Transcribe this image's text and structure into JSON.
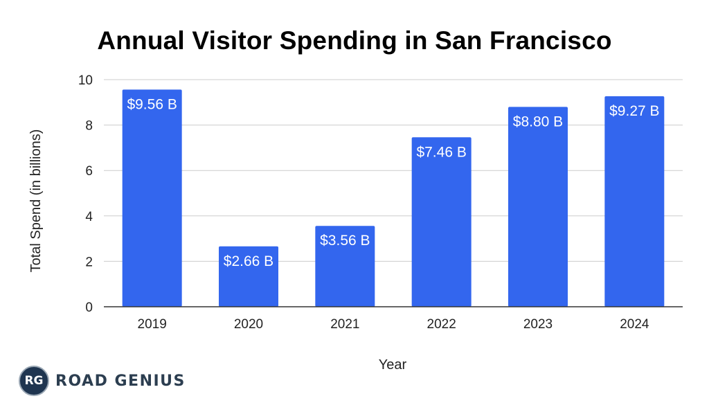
{
  "chart_data": {
    "type": "bar",
    "title": "Annual Visitor Spending in San Francisco",
    "xlabel": "Year",
    "ylabel": "Total Spend (in billions)",
    "categories": [
      "2019",
      "2020",
      "2021",
      "2022",
      "2023",
      "2024"
    ],
    "values": [
      9.56,
      2.66,
      3.56,
      7.46,
      8.8,
      9.27
    ],
    "data_labels": [
      "$9.56 B",
      "$2.66 B",
      "$3.56 B",
      "$7.46 B",
      "$8.80 B",
      "$9.27 B"
    ],
    "ylim": [
      0,
      10
    ],
    "yticks": [
      0,
      2,
      4,
      6,
      8,
      10
    ],
    "grid": true,
    "bar_color": "#3366ee"
  },
  "brand": {
    "badge": "RG",
    "name": "ROAD GENIUS"
  }
}
